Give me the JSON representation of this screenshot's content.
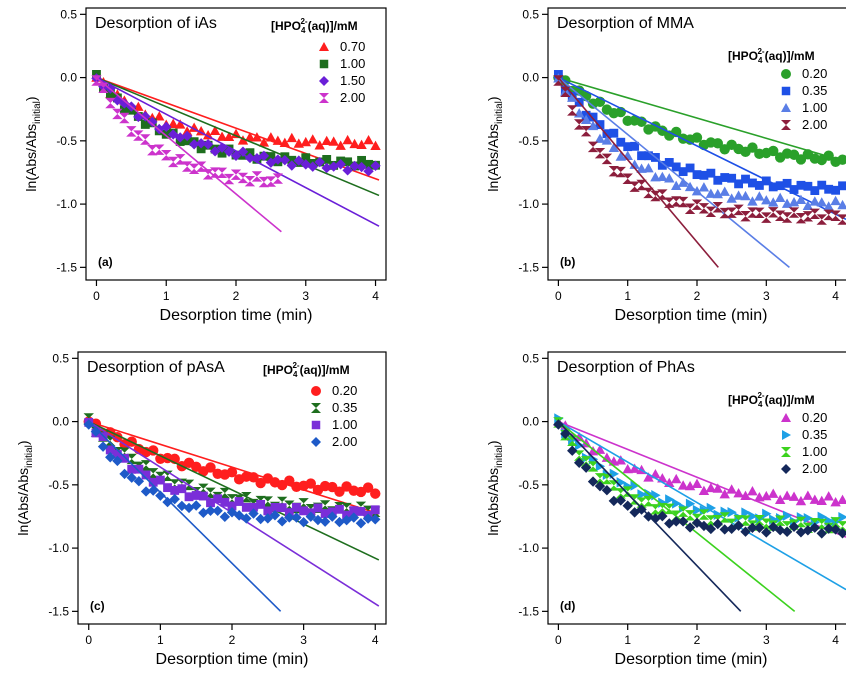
{
  "figure": {
    "ylabel_main": "ln(Abs/Abs",
    "ylabel_sub": "initial",
    "ylabel_close": ")",
    "xlabel": "Desorption time (min)",
    "legend_title_pre": "[HPO",
    "legend_title_sub": "4",
    "legend_title_sup": "2-",
    "legend_title_post": "(aq)]/mM"
  },
  "chart_data": [
    {
      "type": "scatter",
      "title": "Desorption of iAs",
      "panel_label": "(a)",
      "xlabel": "Desorption time (min)",
      "ylabel": "ln(Abs/Abs_initial)",
      "xlim": [
        -0.15,
        4.15
      ],
      "ylim": [
        -1.6,
        0.55
      ],
      "xticks": [
        0,
        1,
        2,
        3,
        4
      ],
      "yticks": [
        0.5,
        0.0,
        -0.5,
        -1.0,
        -1.5
      ],
      "ytick_labels": [
        "0.5",
        "0.0",
        "-0.5",
        "-1.0",
        "-1.5"
      ],
      "legend_position": "top-right",
      "series": [
        {
          "name": "0.70",
          "color": "#ff1e1e",
          "marker": "triangle-up",
          "x_max": 4.0,
          "end": -0.52,
          "k": 1.1,
          "fit_slope": -0.2
        },
        {
          "name": "1.00",
          "color": "#1e6e1e",
          "marker": "square",
          "x_max": 4.0,
          "end": -0.68,
          "k": 1.0,
          "fit_slope": -0.23
        },
        {
          "name": "1.50",
          "color": "#6a1fd8",
          "marker": "diamond",
          "x_max": 4.0,
          "end": -0.72,
          "k": 0.8,
          "fit_slope": -0.29
        },
        {
          "name": "2.00",
          "color": "#cc33cc",
          "marker": "hourglass",
          "x_max": 2.6,
          "end": -0.82,
          "k": 1.3,
          "fit_slope": -0.46
        }
      ]
    },
    {
      "type": "scatter",
      "title": "Desorption of MMA",
      "panel_label": "(b)",
      "xlabel": "Desorption time (min)",
      "ylabel": "ln(Abs/Abs_initial)",
      "xlim": [
        -0.15,
        4.15
      ],
      "ylim": [
        -1.6,
        0.55
      ],
      "xticks": [
        0,
        1,
        2,
        3,
        4
      ],
      "yticks": [
        0.5,
        0.0,
        -0.5,
        -1.0,
        -1.5
      ],
      "ytick_labels": [
        "0.5",
        "0.0",
        "-0.5",
        "-1.0",
        "-1.5"
      ],
      "legend_position": "top-right",
      "series": [
        {
          "name": "0.20",
          "color": "#2aa02a",
          "marker": "circle",
          "x_max": 4.1,
          "end": -0.65,
          "k": 0.6,
          "fit_slope": -0.16
        },
        {
          "name": "0.35",
          "color": "#1e50e6",
          "marker": "square",
          "x_max": 4.1,
          "end": -0.88,
          "k": 0.9,
          "fit_slope": -0.27
        },
        {
          "name": "1.00",
          "color": "#5a7ee6",
          "marker": "triangle-up",
          "x_max": 4.1,
          "end": -1.0,
          "k": 1.0,
          "fit_slope": -0.45
        },
        {
          "name": "2.00",
          "color": "#8c1e3c",
          "marker": "hourglass",
          "x_max": 4.1,
          "end": -1.1,
          "k": 1.3,
          "fit_slope": -0.65
        }
      ]
    },
    {
      "type": "scatter",
      "title": "Desorption of pAsA",
      "panel_label": "(c)",
      "xlabel": "Desorption time (min)",
      "ylabel": "ln(Abs/Abs_initial)",
      "xlim": [
        -0.15,
        4.15
      ],
      "ylim": [
        -1.6,
        0.55
      ],
      "xticks": [
        0,
        1,
        2,
        3,
        4
      ],
      "yticks": [
        0.5,
        0.0,
        -0.5,
        -1.0,
        -1.5
      ],
      "ytick_labels": [
        "0.5",
        "0.0",
        "-0.5",
        "-1.0",
        "-1.5"
      ],
      "legend_position": "top-right",
      "series": [
        {
          "name": "0.20",
          "color": "#ff1e1e",
          "marker": "circle",
          "x_max": 4.0,
          "end": -0.55,
          "k": 0.6,
          "fit_slope": -0.18
        },
        {
          "name": "0.35",
          "color": "#1e6e1e",
          "marker": "hourglass",
          "x_max": 4.0,
          "end": -0.7,
          "k": 0.9,
          "fit_slope": -0.27
        },
        {
          "name": "1.00",
          "color": "#7a2ed8",
          "marker": "square",
          "x_max": 4.0,
          "end": -0.72,
          "k": 1.1,
          "fit_slope": -0.36
        },
        {
          "name": "2.00",
          "color": "#1e5ac8",
          "marker": "diamond",
          "x_max": 4.0,
          "end": -0.78,
          "k": 1.4,
          "fit_slope": -0.56
        }
      ]
    },
    {
      "type": "scatter",
      "title": "Desorption of PhAs",
      "panel_label": "(d)",
      "xlabel": "Desorption time (min)",
      "ylabel": "ln(Abs/Abs_initial)",
      "xlim": [
        -0.15,
        4.15
      ],
      "ylim": [
        -1.6,
        0.55
      ],
      "xticks": [
        0,
        1,
        2,
        3,
        4
      ],
      "yticks": [
        0.5,
        0.0,
        -0.5,
        -1.0,
        -1.5
      ],
      "ytick_labels": [
        "0.5",
        "0.0",
        "-0.5",
        "-1.0",
        "-1.5"
      ],
      "legend_position": "top-right",
      "series": [
        {
          "name": "0.20",
          "color": "#cc33cc",
          "marker": "triangle-up",
          "x_max": 4.1,
          "end": -0.62,
          "k": 0.8,
          "fit_slope": -0.22
        },
        {
          "name": "0.35",
          "color": "#1ea0e6",
          "marker": "triangle-right",
          "x_max": 4.1,
          "end": -0.78,
          "k": 1.0,
          "fit_slope": -0.32
        },
        {
          "name": "1.00",
          "color": "#3cd21e",
          "marker": "hourglass",
          "x_max": 4.1,
          "end": -0.82,
          "k": 1.2,
          "fit_slope": -0.44
        },
        {
          "name": "2.00",
          "color": "#14285a",
          "marker": "diamond",
          "x_max": 4.1,
          "end": -0.86,
          "k": 1.5,
          "fit_slope": -0.57
        }
      ]
    }
  ]
}
